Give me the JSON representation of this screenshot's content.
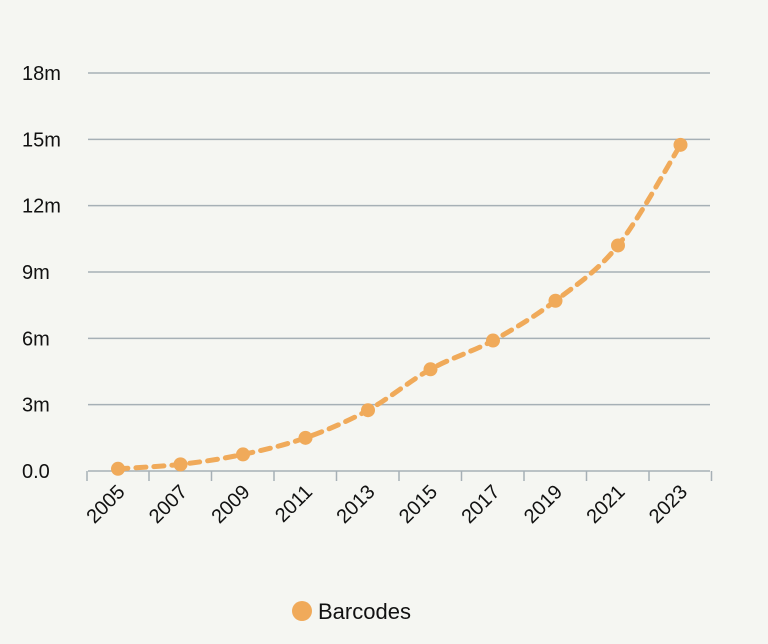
{
  "chart_data": {
    "type": "line",
    "title": "",
    "xlabel": "",
    "ylabel": "",
    "x": [
      2005,
      2007,
      2009,
      2011,
      2013,
      2015,
      2017,
      2019,
      2021,
      2023
    ],
    "x_tick_labels": [
      "2005",
      "2007",
      "2009",
      "2011",
      "2013",
      "2015",
      "2017",
      "2019",
      "2021",
      "2023"
    ],
    "y_ticks": [
      0,
      3,
      6,
      9,
      12,
      15,
      18
    ],
    "y_tick_labels": [
      "0.0",
      "3m",
      "6m",
      "9m",
      "12m",
      "15m",
      "18m"
    ],
    "ylim": [
      0,
      18
    ],
    "series": [
      {
        "name": "Barcodes",
        "color": "#f0aa5a",
        "line_style": "dashed",
        "values": [
          0.1,
          0.3,
          0.75,
          1.5,
          2.75,
          4.6,
          5.9,
          7.7,
          10.2,
          14.75
        ]
      }
    ],
    "grid": "horizontal",
    "legend_position": "bottom"
  },
  "colors": {
    "background": "#f5f6f2",
    "gridline": "#a6b0b6",
    "series": "#f0aa5a"
  }
}
